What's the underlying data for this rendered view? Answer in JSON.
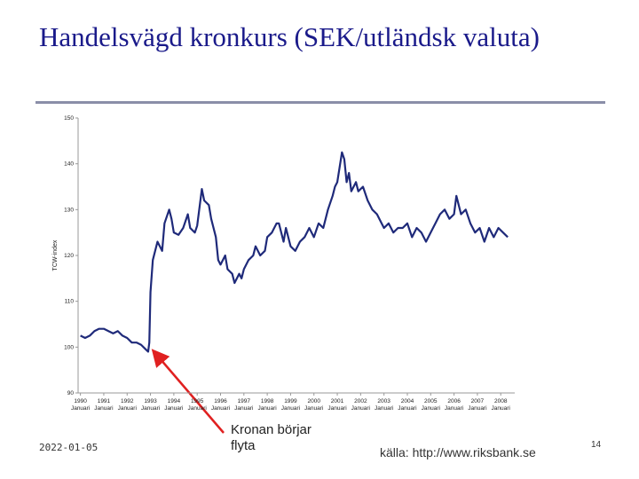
{
  "title": "Handelsvägd kronkurs (SEK/utländsk valuta)",
  "date": "2022-01-05",
  "source": "källa: http://www.riksbank.se",
  "page_number": "14",
  "chart_data": {
    "type": "line",
    "y_label": "TCW-index",
    "annotation": "Kronan börjar flyta",
    "color": "#1f2a7a",
    "x": [
      1990.0,
      1990.2,
      1990.4,
      1990.6,
      1990.8,
      1991.0,
      1991.2,
      1991.4,
      1991.6,
      1991.8,
      1992.0,
      1992.2,
      1992.4,
      1992.6,
      1992.8,
      1992.9,
      1992.95,
      1993.0,
      1993.1,
      1993.3,
      1993.4,
      1993.5,
      1993.6,
      1993.8,
      1993.9,
      1994.0,
      1994.2,
      1994.4,
      1994.6,
      1994.7,
      1994.9,
      1995.0,
      1995.2,
      1995.3,
      1995.5,
      1995.6,
      1995.8,
      1995.9,
      1996.0,
      1996.2,
      1996.3,
      1996.5,
      1996.6,
      1996.8,
      1996.9,
      1997.0,
      1997.2,
      1997.4,
      1997.5,
      1997.7,
      1997.9,
      1998.0,
      1998.2,
      1998.4,
      1998.5,
      1998.7,
      1998.8,
      1999.0,
      1999.2,
      1999.4,
      1999.6,
      1999.8,
      2000.0,
      2000.2,
      2000.4,
      2000.6,
      2000.8,
      2000.9,
      2001.0,
      2001.2,
      2001.3,
      2001.4,
      2001.5,
      2001.6,
      2001.8,
      2001.9,
      2002.1,
      2002.3,
      2002.5,
      2002.7,
      2002.9,
      2003.0,
      2003.2,
      2003.4,
      2003.6,
      2003.8,
      2004.0,
      2004.2,
      2004.4,
      2004.6,
      2004.8,
      2005.0,
      2005.2,
      2005.4,
      2005.6,
      2005.8,
      2006.0,
      2006.1,
      2006.3,
      2006.5,
      2006.7,
      2006.9,
      2007.1,
      2007.3,
      2007.5,
      2007.7,
      2007.9,
      2008.1,
      2008.3
    ],
    "values": [
      102.5,
      102,
      102.5,
      103.5,
      104,
      104,
      103.5,
      103,
      103.5,
      102.5,
      102,
      101,
      101,
      100.5,
      99.5,
      99,
      101,
      112,
      119,
      123,
      122,
      121,
      127,
      130,
      128,
      125,
      124.5,
      126,
      129,
      126,
      125,
      126.5,
      134.5,
      132,
      131,
      128,
      124,
      119,
      118,
      120,
      117,
      116,
      114,
      116,
      115,
      117,
      119,
      120,
      122,
      120,
      121,
      124,
      125,
      127,
      127,
      123,
      126,
      122,
      121,
      123,
      124,
      126,
      124,
      127,
      126,
      130,
      133,
      135,
      136,
      142.5,
      141,
      136,
      138,
      134,
      136,
      134,
      135,
      132,
      130,
      129,
      127,
      126,
      127,
      125,
      126,
      126,
      127,
      124,
      126,
      125,
      123,
      125,
      127,
      129,
      130,
      128,
      129,
      133,
      129,
      130,
      127,
      125,
      126,
      123,
      126,
      124,
      126,
      125,
      124
    ],
    "xlim": [
      1989.9,
      2008.6
    ],
    "ylim": [
      90,
      150
    ],
    "yticks": [
      90,
      100,
      110,
      120,
      130,
      140,
      150
    ],
    "xticks": [
      {
        "value": 1990,
        "label": "1990 Januari"
      },
      {
        "value": 1991,
        "label": "1991 Januari"
      },
      {
        "value": 1992,
        "label": "1992 Januari"
      },
      {
        "value": 1993,
        "label": "1993 Januari"
      },
      {
        "value": 1994,
        "label": "1994 Januari"
      },
      {
        "value": 1995,
        "label": "1995 Januari"
      },
      {
        "value": 1996,
        "label": "1996 Januari"
      },
      {
        "value": 1997,
        "label": "1997 Januari"
      },
      {
        "value": 1998,
        "label": "1998 Januari"
      },
      {
        "value": 1999,
        "label": "1999 Januari"
      },
      {
        "value": 2000,
        "label": "2000 Januari"
      },
      {
        "value": 2001,
        "label": "2001 Januari"
      },
      {
        "value": 2002,
        "label": "2002 Januari"
      },
      {
        "value": 2003,
        "label": "2003 Januari"
      },
      {
        "value": 2004,
        "label": "2004 Januari"
      },
      {
        "value": 2005,
        "label": "2005 Januari"
      },
      {
        "value": 2006,
        "label": "2006 Januari"
      },
      {
        "value": 2007,
        "label": "2007 Januari"
      },
      {
        "value": 2008,
        "label": "2008 Januari"
      }
    ]
  }
}
